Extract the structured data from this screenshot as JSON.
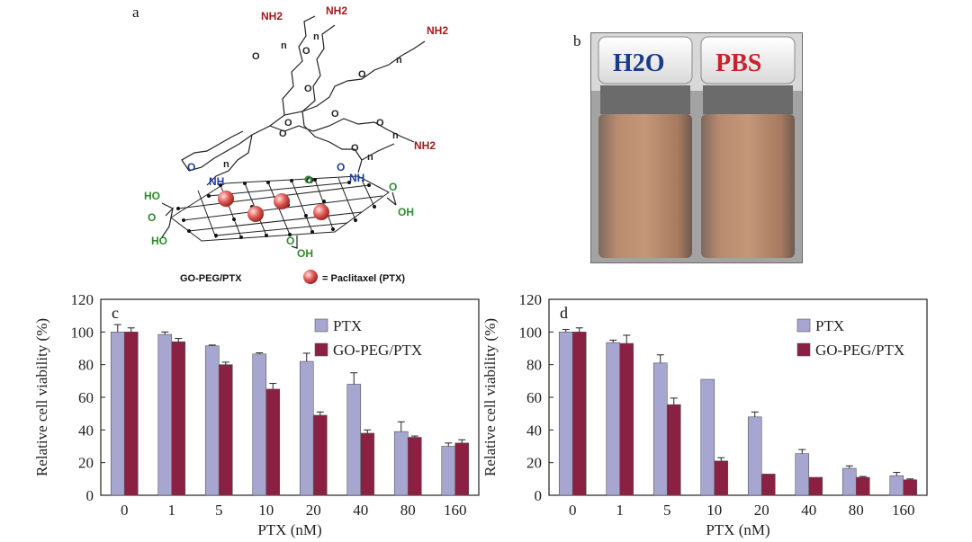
{
  "panel_a": {
    "letter": "a",
    "amine_label": "NH2",
    "n_label": "n",
    "nh_label": "NH",
    "o_label": "O",
    "oh_label": "OH",
    "ho_label": "HO",
    "structure_name": "GO-PEG/PTX",
    "legend_text": "= Paclitaxel (PTX)",
    "colors": {
      "amine": "#a01c1c",
      "amide": "#1f3fa0",
      "acid": "#2e8b2e",
      "bead": "#e05b57"
    }
  },
  "panel_b": {
    "letter": "b",
    "vial_left_label": "H2O",
    "vial_right_label": "PBS",
    "colors": {
      "h2o_text": "#1c3a8c",
      "pbs_text": "#c8232c",
      "liquid": "#a77a5f"
    }
  },
  "chart_data": [
    {
      "type": "bar",
      "panel": "c",
      "categories": [
        "0",
        "1",
        "5",
        "10",
        "20",
        "40",
        "80",
        "160"
      ],
      "series": [
        {
          "name": "PTX",
          "values": [
            100,
            98.5,
            91.5,
            86.5,
            82,
            68,
            39,
            30
          ],
          "errors": [
            4.5,
            1.5,
            0.5,
            0.7,
            5,
            7,
            6,
            2
          ],
          "color": "#a6a6d0"
        },
        {
          "name": "GO-PEG/PTX",
          "values": [
            100,
            94,
            80,
            65,
            49,
            38,
            35.5,
            32
          ],
          "errors": [
            2.5,
            2,
            1.5,
            3.5,
            2,
            2,
            0.8,
            2
          ],
          "color": "#8b2142"
        }
      ],
      "xlabel": "PTX (nM)",
      "ylabel": "Relative cell viability (%)",
      "ylim": [
        0,
        120
      ],
      "yticks": [
        "0",
        "20",
        "40",
        "60",
        "80",
        "100",
        "120"
      ],
      "legend_position": "top-right",
      "grid": false
    },
    {
      "type": "bar",
      "panel": "d",
      "categories": [
        "0",
        "1",
        "5",
        "10",
        "20",
        "40",
        "80",
        "160"
      ],
      "series": [
        {
          "name": "PTX",
          "values": [
            100,
            93.5,
            81,
            71,
            48,
            25.5,
            16.5,
            12
          ],
          "errors": [
            1.5,
            1.5,
            5,
            0,
            3,
            2.5,
            1.5,
            2
          ],
          "color": "#a6a6d0"
        },
        {
          "name": "GO-PEG/PTX",
          "values": [
            100,
            93,
            55.5,
            21,
            13,
            11,
            11,
            9.5
          ],
          "errors": [
            2.5,
            5,
            4,
            2,
            0,
            0,
            0.5,
            0.5
          ],
          "color": "#8b2142"
        }
      ],
      "xlabel": "PTX (nM)",
      "ylabel": "Relative cell viability (%)",
      "ylim": [
        0,
        120
      ],
      "yticks": [
        "0",
        "20",
        "40",
        "60",
        "80",
        "100",
        "120"
      ],
      "legend_position": "top-right",
      "grid": false
    }
  ]
}
